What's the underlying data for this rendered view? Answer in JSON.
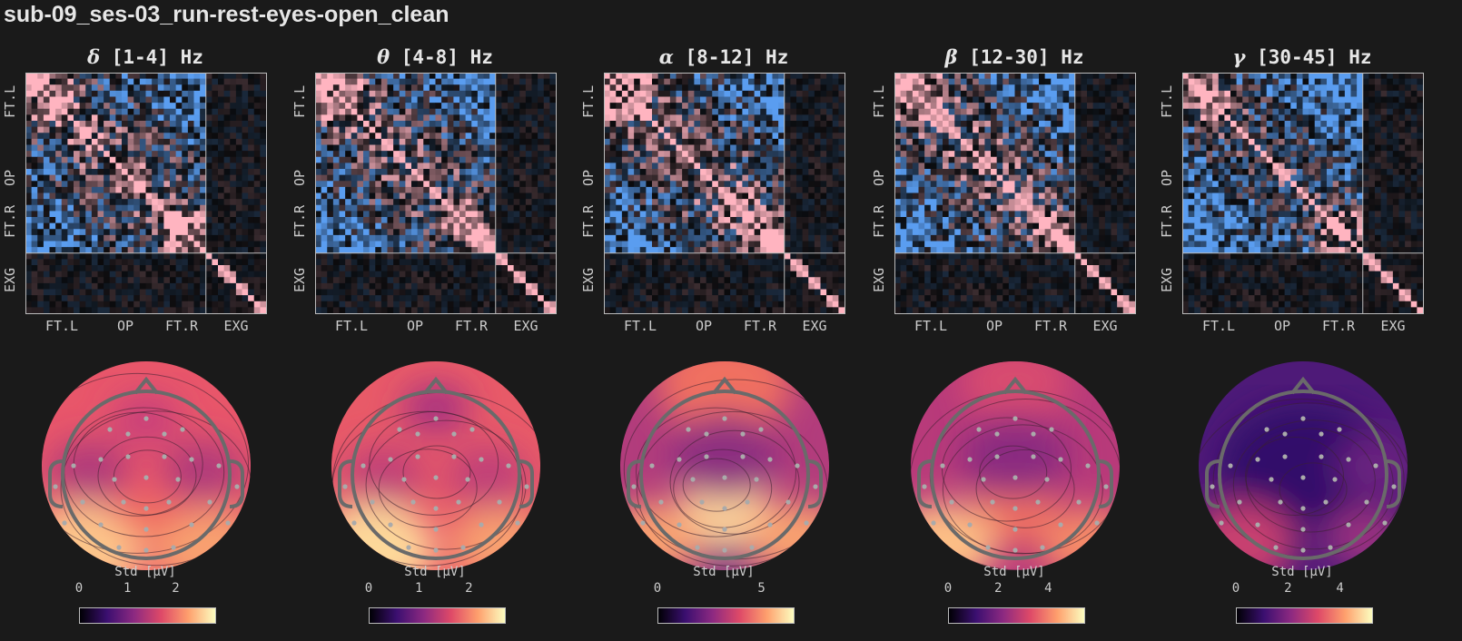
{
  "title": "sub-09_ses-03_run-rest-eyes-open_clean",
  "channel_groups": [
    "FT.L",
    "OP",
    "FT.R",
    "EXG"
  ],
  "colorbar_label": "Std [μV]",
  "chart_data": {
    "type": "heatmap",
    "panels": [
      {
        "symbol": "δ",
        "band": "[1-4] Hz",
        "ticks": [
          "0",
          "1",
          "2"
        ],
        "vmax": 2.8,
        "topo": "delta"
      },
      {
        "symbol": "θ",
        "band": "[4-8] Hz",
        "ticks": [
          "0",
          "1",
          "2"
        ],
        "vmax": 2.7,
        "topo": "theta"
      },
      {
        "symbol": "α",
        "band": "[8-12] Hz",
        "ticks": [
          "0",
          "5"
        ],
        "vmax": 6.5,
        "topo": "alpha"
      },
      {
        "symbol": "β",
        "band": "[12-30] Hz",
        "ticks": [
          "0",
          "2",
          "4"
        ],
        "vmax": 5.4,
        "topo": "beta"
      },
      {
        "symbol": "γ",
        "band": "[30-45] Hz",
        "ticks": [
          "0",
          "2",
          "4"
        ],
        "vmax": 5.2,
        "topo": "gamma"
      }
    ]
  }
}
